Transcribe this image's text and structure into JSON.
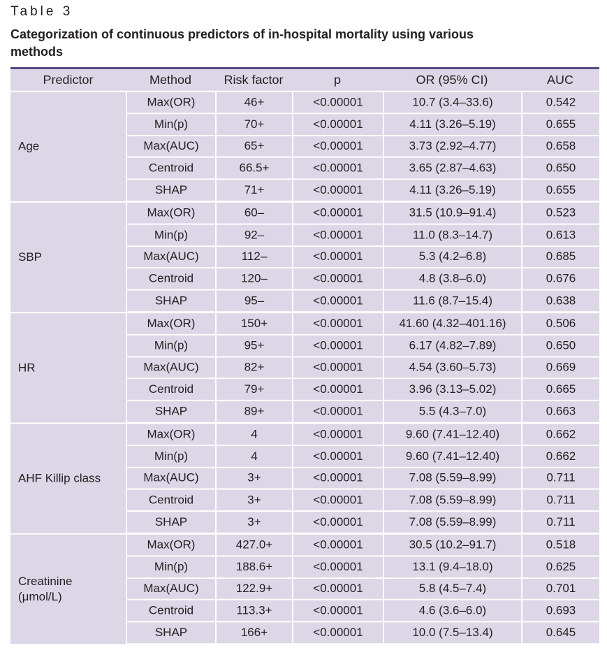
{
  "table_label": "Table 3",
  "caption": "Categorization of continuous predictors of in-hospital mortality using various methods",
  "headers": [
    "Predictor",
    "Method",
    "Risk factor",
    "p",
    "OR (95% CI)",
    "AUC"
  ],
  "groups": [
    {
      "predictor": "Age",
      "rows": [
        {
          "method": "Max(OR)",
          "risk": "46+",
          "p": "<0.00001",
          "or": "10.7 (3.4–33.6)",
          "auc": "0.542"
        },
        {
          "method": "Min(p)",
          "risk": "70+",
          "p": "<0.00001",
          "or": "4.11 (3.26–5.19)",
          "auc": "0.655"
        },
        {
          "method": "Max(AUC)",
          "risk": "65+",
          "p": "<0.00001",
          "or": "3.73 (2.92–4.77)",
          "auc": "0.658"
        },
        {
          "method": "Centroid",
          "risk": "66.5+",
          "p": "<0.00001",
          "or": "3.65 (2.87–4.63)",
          "auc": "0.650"
        },
        {
          "method": "SHAP",
          "risk": "71+",
          "p": "<0.00001",
          "or": "4.11 (3.26–5.19)",
          "auc": "0.655"
        }
      ]
    },
    {
      "predictor": "SBP",
      "rows": [
        {
          "method": "Max(OR)",
          "risk": "60–",
          "p": "<0.00001",
          "or": "31.5 (10.9–91.4)",
          "auc": "0.523"
        },
        {
          "method": "Min(p)",
          "risk": "92–",
          "p": "<0.00001",
          "or": "11.0 (8.3–14.7)",
          "auc": "0.613"
        },
        {
          "method": "Max(AUC)",
          "risk": "112–",
          "p": "<0.00001",
          "or": "5.3 (4.2–6.8)",
          "auc": "0.685"
        },
        {
          "method": "Centroid",
          "risk": "120–",
          "p": "<0.00001",
          "or": "4.8 (3.8–6.0)",
          "auc": "0.676"
        },
        {
          "method": "SHAP",
          "risk": "95–",
          "p": "<0.00001",
          "or": "11.6 (8.7–15.4)",
          "auc": "0.638"
        }
      ]
    },
    {
      "predictor": "HR",
      "rows": [
        {
          "method": "Max(OR)",
          "risk": "150+",
          "p": "<0.00001",
          "or": "41.60 (4.32–401.16)",
          "auc": "0.506"
        },
        {
          "method": "Min(p)",
          "risk": "95+",
          "p": "<0.00001",
          "or": "6.17 (4.82–7.89)",
          "auc": "0.650"
        },
        {
          "method": "Max(AUC)",
          "risk": "82+",
          "p": "<0.00001",
          "or": "4.54 (3.60–5.73)",
          "auc": "0.669"
        },
        {
          "method": "Centroid",
          "risk": "79+",
          "p": "<0.00001",
          "or": "3.96 (3.13–5.02)",
          "auc": "0.665"
        },
        {
          "method": "SHAP",
          "risk": "89+",
          "p": "<0.00001",
          "or": "5.5 (4.3–7.0)",
          "auc": "0.663"
        }
      ]
    },
    {
      "predictor": "AHF Killip class",
      "rows": [
        {
          "method": "Max(OR)",
          "risk": "4",
          "p": "<0.00001",
          "or": "9.60 (7.41–12.40)",
          "auc": "0.662"
        },
        {
          "method": "Min(p)",
          "risk": "4",
          "p": "<0.00001",
          "or": "9.60 (7.41–12.40)",
          "auc": "0.662"
        },
        {
          "method": "Max(AUC)",
          "risk": "3+",
          "p": "<0.00001",
          "or": "7.08 (5.59–8.99)",
          "auc": "0.711"
        },
        {
          "method": "Centroid",
          "risk": "3+",
          "p": "<0.00001",
          "or": "7.08 (5.59–8.99)",
          "auc": "0.711"
        },
        {
          "method": "SHAP",
          "risk": "3+",
          "p": "<0.00001",
          "or": "7.08 (5.59–8.99)",
          "auc": "0.711"
        }
      ]
    },
    {
      "predictor": "Creatinine (μmol/L)",
      "rows": [
        {
          "method": "Max(OR)",
          "risk": "427.0+",
          "p": "<0.00001",
          "or": "30.5 (10.2–91.7)",
          "auc": "0.518"
        },
        {
          "method": "Min(p)",
          "risk": "188.6+",
          "p": "<0.00001",
          "or": "13.1 (9.4–18.0)",
          "auc": "0.625"
        },
        {
          "method": "Max(AUC)",
          "risk": "122.9+",
          "p": "<0.00001",
          "or": "5.8 (4.5–7.4)",
          "auc": "0.701"
        },
        {
          "method": "Centroid",
          "risk": "113.3+",
          "p": "<0.00001",
          "or": "4.6 (3.6–6.0)",
          "auc": "0.693"
        },
        {
          "method": "SHAP",
          "risk": "166+",
          "p": "<0.00001",
          "or": "10.0 (7.5–13.4)",
          "auc": "0.645"
        }
      ]
    }
  ]
}
